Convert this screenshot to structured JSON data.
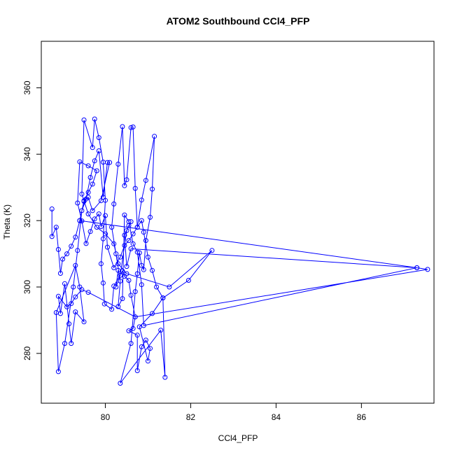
{
  "chart_data": {
    "type": "line",
    "title": "ATOM2 Southbound CCl4_PFP",
    "xlabel": "CCl4_PFP",
    "ylabel": "Theta (K)",
    "xlim": [
      78.5,
      87.7
    ],
    "ylim": [
      265,
      374
    ],
    "xticks": [
      80,
      82,
      84,
      86
    ],
    "yticks": [
      280,
      300,
      320,
      340,
      360
    ],
    "grid": false,
    "markers": "open-circle",
    "series": [
      {
        "color": "#0000ff",
        "points": [
          [
            78.75,
            323.5
          ],
          [
            78.75,
            315.2
          ],
          [
            78.85,
            318.0
          ],
          [
            78.9,
            311.3
          ],
          [
            78.95,
            304.1
          ],
          [
            79.0,
            308.4
          ],
          [
            79.1,
            310.0
          ],
          [
            79.2,
            312.3
          ],
          [
            79.3,
            315.0
          ],
          [
            79.4,
            320.0
          ],
          [
            79.5,
            326.0
          ],
          [
            79.6,
            328.5
          ],
          [
            79.7,
            331.0
          ],
          [
            79.8,
            335.0
          ],
          [
            79.6,
            336.5
          ],
          [
            79.4,
            337.7
          ],
          [
            79.35,
            325.3
          ],
          [
            79.45,
            319.9
          ],
          [
            79.55,
            313.1
          ],
          [
            79.65,
            316.7
          ],
          [
            79.75,
            320.5
          ],
          [
            79.85,
            322.0
          ],
          [
            79.9,
            318.2
          ],
          [
            80.0,
            321.5
          ],
          [
            80.05,
            312.0
          ],
          [
            80.2,
            305.8
          ],
          [
            80.35,
            309.0
          ],
          [
            80.45,
            312.5
          ],
          [
            80.55,
            314.0
          ],
          [
            80.65,
            316.0
          ],
          [
            80.75,
            318.0
          ],
          [
            80.85,
            320.0
          ],
          [
            80.9,
            316.5
          ],
          [
            81.0,
            309.0
          ],
          [
            81.1,
            305.0
          ],
          [
            81.2,
            300.0
          ],
          [
            81.35,
            296.7
          ],
          [
            81.95,
            302.0
          ],
          [
            82.5,
            311.0
          ],
          [
            81.5,
            300.0
          ],
          [
            80.5,
            304.0
          ],
          [
            80.3,
            307.0
          ],
          [
            80.2,
            313.0
          ],
          [
            80.0,
            316.0
          ],
          [
            79.8,
            318.0
          ],
          [
            79.6,
            322.0
          ],
          [
            79.45,
            328.0
          ],
          [
            79.5,
            350.3
          ],
          [
            79.7,
            342.0
          ],
          [
            79.75,
            350.6
          ],
          [
            79.85,
            345.0
          ],
          [
            79.95,
            337.6
          ],
          [
            80.0,
            326.1
          ],
          [
            79.95,
            314.5
          ],
          [
            79.9,
            307.0
          ],
          [
            79.95,
            301.2
          ],
          [
            79.98,
            294.9
          ],
          [
            80.15,
            293.3
          ],
          [
            80.2,
            300.3
          ],
          [
            80.4,
            304.8
          ],
          [
            80.45,
            303.2
          ],
          [
            80.55,
            302.0
          ],
          [
            80.6,
            297.5
          ],
          [
            80.7,
            291.0
          ],
          [
            80.65,
            287.5
          ],
          [
            80.55,
            286.8
          ],
          [
            80.75,
            285.5
          ],
          [
            80.75,
            274.8
          ],
          [
            80.85,
            282.0
          ],
          [
            80.95,
            284.0
          ],
          [
            81.05,
            281.5
          ],
          [
            81.0,
            277.7
          ],
          [
            80.8,
            288.0
          ],
          [
            81.1,
            292.0
          ],
          [
            81.35,
            296.7
          ],
          [
            81.4,
            272.8
          ],
          [
            81.3,
            287.0
          ],
          [
            80.35,
            271.0
          ],
          [
            80.6,
            283.0
          ],
          [
            80.7,
            298.6
          ],
          [
            80.75,
            304.0
          ],
          [
            80.8,
            310.3
          ],
          [
            80.85,
            306.5
          ],
          [
            80.9,
            305.2
          ],
          [
            80.95,
            314.0
          ],
          [
            81.05,
            321.0
          ],
          [
            81.1,
            329.5
          ],
          [
            81.15,
            345.4
          ],
          [
            80.95,
            332.1
          ],
          [
            80.85,
            326.2
          ],
          [
            80.75,
            318.0
          ],
          [
            80.7,
            329.7
          ],
          [
            80.65,
            348.2
          ],
          [
            80.6,
            348.0
          ],
          [
            80.5,
            332.3
          ],
          [
            80.45,
            330.5
          ],
          [
            80.4,
            348.3
          ],
          [
            80.3,
            337.0
          ],
          [
            80.2,
            325.0
          ],
          [
            80.15,
            318.0
          ],
          [
            80.25,
            310.0
          ],
          [
            80.35,
            301.8
          ],
          [
            80.3,
            294.1
          ],
          [
            80.4,
            296.5
          ],
          [
            80.45,
            321.7
          ],
          [
            80.55,
            319.7
          ],
          [
            80.65,
            313.0
          ],
          [
            80.75,
            310.5
          ],
          [
            80.85,
            300.7
          ],
          [
            80.9,
            288.4
          ],
          [
            87.3,
            305.8
          ],
          [
            87.55,
            305.3
          ],
          [
            80.7,
            291.0
          ],
          [
            79.6,
            298.4
          ],
          [
            79.45,
            299.2
          ],
          [
            79.3,
            297.0
          ],
          [
            79.2,
            295.0
          ],
          [
            79.1,
            294.0
          ],
          [
            78.9,
            297.2
          ],
          [
            78.95,
            292.0
          ],
          [
            79.05,
            301.0
          ],
          [
            79.15,
            288.9
          ],
          [
            79.2,
            283.0
          ],
          [
            79.3,
            292.5
          ],
          [
            79.5,
            289.5
          ],
          [
            79.4,
            300.0
          ],
          [
            79.3,
            306.5
          ],
          [
            78.85,
            292.3
          ],
          [
            78.9,
            274.5
          ],
          [
            79.05,
            283.0
          ],
          [
            79.25,
            300.0
          ],
          [
            79.35,
            311.0
          ],
          [
            79.45,
            323.0
          ],
          [
            79.55,
            326.5
          ],
          [
            79.65,
            333.0
          ],
          [
            79.75,
            338.0
          ],
          [
            79.85,
            341.0
          ],
          [
            79.95,
            327.0
          ],
          [
            80.05,
            337.5
          ],
          [
            80.1,
            337.5
          ],
          [
            79.9,
            326.0
          ],
          [
            79.7,
            323.0
          ],
          [
            79.6,
            327.0
          ],
          [
            79.5,
            325.8
          ],
          [
            79.4,
            320.0
          ],
          [
            87.3,
            305.8
          ],
          [
            80.6,
            311.5
          ],
          [
            80.5,
            306.2
          ],
          [
            80.45,
            315.6
          ],
          [
            80.55,
            318.5
          ],
          [
            80.6,
            319.7
          ],
          [
            80.5,
            317.0
          ],
          [
            80.35,
            303.5
          ],
          [
            80.25,
            300.0
          ],
          [
            80.3,
            305.0
          ]
        ]
      }
    ]
  }
}
